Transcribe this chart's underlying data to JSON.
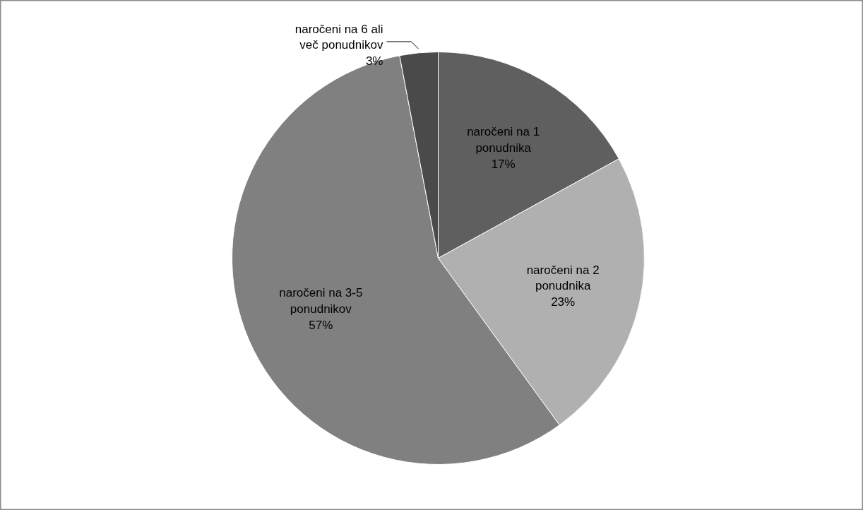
{
  "chart_data": {
    "type": "pie",
    "categories": [
      "naročeni na 1 ponudnika",
      "naročeni na 2 ponudnika",
      "naročeni na 3-5 ponudnikov",
      "naročeni na 6 ali več ponudnikov"
    ],
    "values": [
      17,
      23,
      57,
      3
    ],
    "colors": [
      "#5f5f5f",
      "#b0b0b0",
      "#808080",
      "#4a4a4a"
    ],
    "value_labels": [
      "17%",
      "23%",
      "57%",
      "3%"
    ]
  }
}
